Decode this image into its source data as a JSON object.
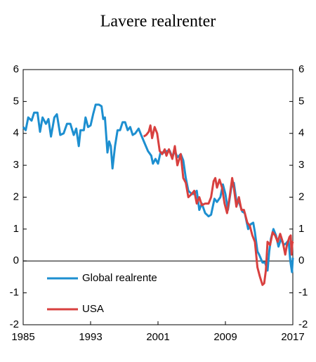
{
  "chart_data": {
    "type": "line",
    "title": "Lavere realrenter",
    "xlim": [
      1985,
      2017
    ],
    "xticks": [
      1985,
      1993,
      2001,
      2009,
      2017
    ],
    "ylim": [
      -2,
      6
    ],
    "yticks": [
      -2,
      -1,
      0,
      1,
      2,
      3,
      4,
      5,
      6
    ],
    "y2lim": [
      -2,
      6
    ],
    "y2ticks": [
      -2,
      -1,
      0,
      1,
      2,
      3,
      4,
      5,
      6
    ],
    "legend": "lower left",
    "series": [
      {
        "name": "Global realrente",
        "color": "#1d8fd0",
        "x": [
          1985.0,
          1985.3,
          1985.6,
          1986.0,
          1986.3,
          1986.7,
          1987.0,
          1987.3,
          1987.7,
          1988.0,
          1988.3,
          1988.7,
          1989.0,
          1989.4,
          1989.8,
          1990.2,
          1990.6,
          1991.0,
          1991.3,
          1991.6,
          1991.8,
          1992.2,
          1992.4,
          1992.7,
          1993.0,
          1993.3,
          1993.6,
          1994.0,
          1994.3,
          1994.5,
          1994.7,
          1995.0,
          1995.2,
          1995.4,
          1995.6,
          1995.9,
          1996.2,
          1996.5,
          1996.8,
          1997.1,
          1997.4,
          1997.7,
          1998.0,
          1998.3,
          1998.7,
          1999.0,
          1999.4,
          1999.8,
          2000.2,
          2000.4,
          2000.7,
          2001.0,
          2001.3,
          2001.7,
          2002.1,
          2002.4,
          2002.7,
          2003.0,
          2003.3,
          2003.7,
          2004.0,
          2004.3,
          2004.6,
          2005.0,
          2005.3,
          2005.6,
          2005.9,
          2006.2,
          2006.6,
          2007.0,
          2007.3,
          2007.7,
          2008.0,
          2008.4,
          2008.7,
          2009.0,
          2009.3,
          2009.7,
          2010.0,
          2010.3,
          2010.6,
          2011.0,
          2011.3,
          2011.7,
          2012.0,
          2012.3,
          2012.5,
          2012.8,
          2013.0,
          2013.4,
          2013.7,
          2014.0,
          2014.2,
          2014.4,
          2014.7,
          2015.0,
          2015.3,
          2015.6,
          2015.9,
          2016.2,
          2016.5,
          2016.7,
          2016.9,
          2017.0
        ],
        "values": [
          4.2,
          4.1,
          4.5,
          4.4,
          4.65,
          4.65,
          4.05,
          4.5,
          4.3,
          4.45,
          3.9,
          4.5,
          4.6,
          3.95,
          4.0,
          4.3,
          4.3,
          3.95,
          4.15,
          3.6,
          4.1,
          4.1,
          4.5,
          4.2,
          4.25,
          4.6,
          4.9,
          4.9,
          4.85,
          4.45,
          4.5,
          3.4,
          3.75,
          3.6,
          2.9,
          3.6,
          4.1,
          4.1,
          4.35,
          4.35,
          4.1,
          4.2,
          3.95,
          4.0,
          4.15,
          3.95,
          3.7,
          3.45,
          3.3,
          3.05,
          3.2,
          3.05,
          3.4,
          3.4,
          3.45,
          3.45,
          3.25,
          3.45,
          3.25,
          3.35,
          3.15,
          2.6,
          2.2,
          2.1,
          2.1,
          2.2,
          1.6,
          1.8,
          1.5,
          1.4,
          1.45,
          1.95,
          1.85,
          2.0,
          2.4,
          2.1,
          1.6,
          2.3,
          2.45,
          1.9,
          1.85,
          1.55,
          1.5,
          1.0,
          1.15,
          1.2,
          0.9,
          0.3,
          0.2,
          -0.05,
          -0.05,
          -0.3,
          0.3,
          0.7,
          1.0,
          0.8,
          0.45,
          0.7,
          0.5,
          0.55,
          0.65,
          0.0,
          -0.35,
          0.1
        ]
      },
      {
        "name": "USA",
        "color": "#d8403f",
        "x": [
          1999.3,
          1999.6,
          1999.9,
          2000.1,
          2000.3,
          2000.6,
          2000.9,
          2001.2,
          2001.5,
          2001.8,
          2002.0,
          2002.3,
          2002.7,
          2003.0,
          2003.3,
          2003.7,
          2004.0,
          2004.3,
          2004.6,
          2005.0,
          2005.3,
          2005.6,
          2005.9,
          2006.2,
          2006.6,
          2007.0,
          2007.3,
          2007.6,
          2007.8,
          2008.0,
          2008.3,
          2008.6,
          2008.9,
          2009.2,
          2009.5,
          2009.8,
          2010.0,
          2010.3,
          2010.6,
          2010.9,
          2011.2,
          2011.6,
          2011.9,
          2012.2,
          2012.5,
          2012.8,
          2013.1,
          2013.4,
          2013.6,
          2013.8,
          2014.0,
          2014.3,
          2014.6,
          2014.9,
          2015.2,
          2015.5,
          2015.8,
          2016.1,
          2016.3,
          2016.6,
          2016.75,
          2016.85,
          2016.95,
          2017.0
        ],
        "values": [
          3.9,
          3.95,
          4.05,
          4.25,
          3.85,
          4.2,
          4.0,
          3.45,
          3.35,
          3.5,
          3.3,
          3.5,
          3.2,
          3.6,
          3.0,
          3.35,
          2.6,
          2.45,
          2.0,
          2.1,
          2.2,
          1.8,
          2.0,
          1.75,
          1.8,
          1.8,
          2.0,
          2.5,
          2.6,
          2.3,
          2.55,
          2.3,
          1.8,
          1.5,
          2.0,
          2.6,
          2.3,
          1.7,
          2.0,
          1.6,
          1.6,
          1.2,
          1.1,
          0.8,
          0.6,
          -0.2,
          -0.5,
          -0.75,
          -0.7,
          -0.3,
          0.6,
          0.5,
          0.9,
          0.8,
          0.6,
          0.85,
          0.6,
          0.2,
          0.5,
          0.75,
          0.8,
          0.2,
          0.6,
          0.55
        ]
      }
    ]
  }
}
